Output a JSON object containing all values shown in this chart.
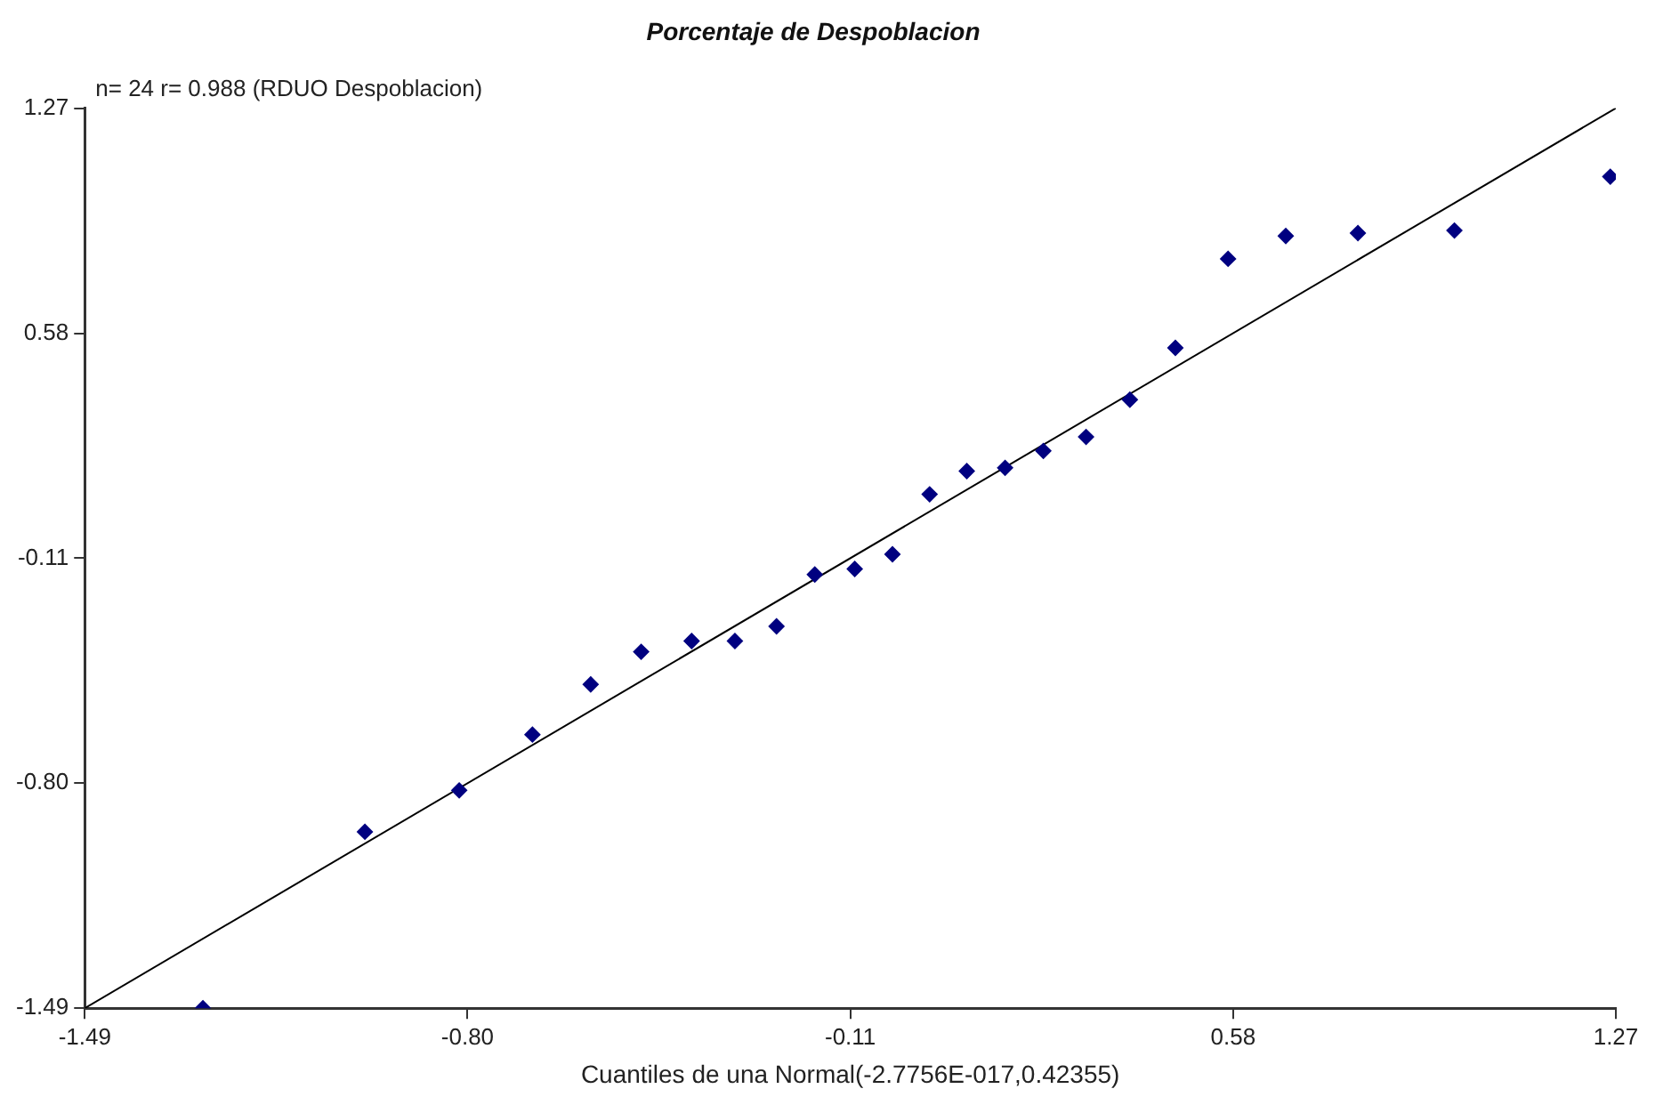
{
  "chart_data": {
    "type": "scatter",
    "title": "Porcentaje de Despoblacion",
    "xlabel": "Cuantiles de una Normal(-2.7756E-017,0.42355)",
    "annotations": [
      "n= 24 r= 0.988 (RDUO Despoblacion)"
    ],
    "xlim": [
      -1.49,
      1.27
    ],
    "xticks": [
      -1.49,
      {
        "value": -0.8,
        "label": "-0.80"
      },
      -0.11,
      0.58,
      1.27
    ],
    "ylim": [
      -1.49,
      1.27
    ],
    "yticks": [
      -1.49,
      {
        "value": -0.8,
        "label": "-0.80"
      },
      -0.11,
      0.58,
      1.27
    ],
    "grid": false,
    "legend": false,
    "marker": "diamond",
    "series": [
      {
        "type": "scatter",
        "color": "#000080",
        "x": [
          -1.277,
          -0.985,
          -0.815,
          -0.683,
          -0.578,
          -0.487,
          -0.396,
          -0.318,
          -0.243,
          -0.174,
          -0.102,
          -0.034,
          0.033,
          0.1,
          0.169,
          0.238,
          0.315,
          0.394,
          0.476,
          0.571,
          0.675,
          0.805,
          0.979,
          1.26
        ],
        "values": [
          -1.49,
          -0.949,
          -0.822,
          -0.651,
          -0.497,
          -0.397,
          -0.364,
          -0.364,
          -0.319,
          -0.16,
          -0.143,
          -0.098,
          0.086,
          0.157,
          0.167,
          0.219,
          0.262,
          0.376,
          0.535,
          0.808,
          0.878,
          0.887,
          0.895,
          1.06
        ]
      },
      {
        "type": "line",
        "color": "#000000",
        "x": [
          -1.49,
          1.27
        ],
        "values": [
          -1.49,
          1.27
        ],
        "marker": "none"
      }
    ]
  }
}
